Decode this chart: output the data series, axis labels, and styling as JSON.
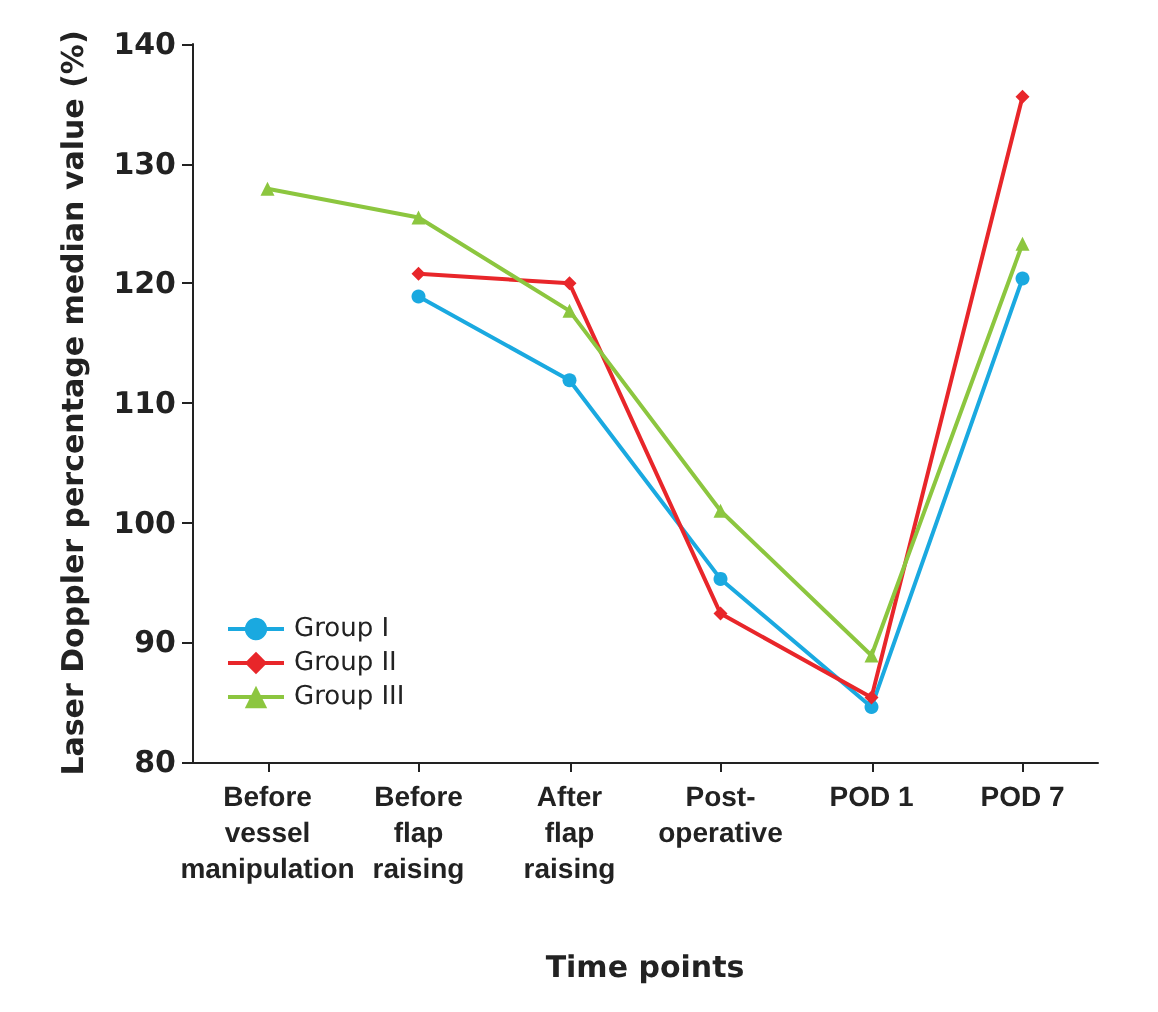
{
  "chart_data": {
    "type": "line",
    "xlabel": "Time points",
    "ylabel": "Laser Doppler percentage median value (%)",
    "categories": [
      "Before\nvessel\nmanipulation",
      "Before\nflap\nraising",
      "After\nflap\nraising",
      "Post-\noperative",
      "POD 1",
      "POD 7"
    ],
    "ylim": [
      80,
      140
    ],
    "yticks": [
      80,
      90,
      100,
      110,
      120,
      130,
      140
    ],
    "grid": false,
    "legend": "left",
    "series": [
      {
        "name": "Group I",
        "color": "#1aa9e0",
        "marker": "circle",
        "values": [
          null,
          118.9,
          111.9,
          95.3,
          84.6,
          120.4
        ]
      },
      {
        "name": "Group II",
        "color": "#e8262a",
        "marker": "diamond",
        "values": [
          null,
          120.8,
          120,
          92.4,
          85.4,
          135.6
        ]
      },
      {
        "name": "Group III",
        "color": "#8cc63f",
        "marker": "triangle",
        "values": [
          127.9,
          125.5,
          117.7,
          101,
          88.9,
          123.3
        ]
      }
    ]
  }
}
